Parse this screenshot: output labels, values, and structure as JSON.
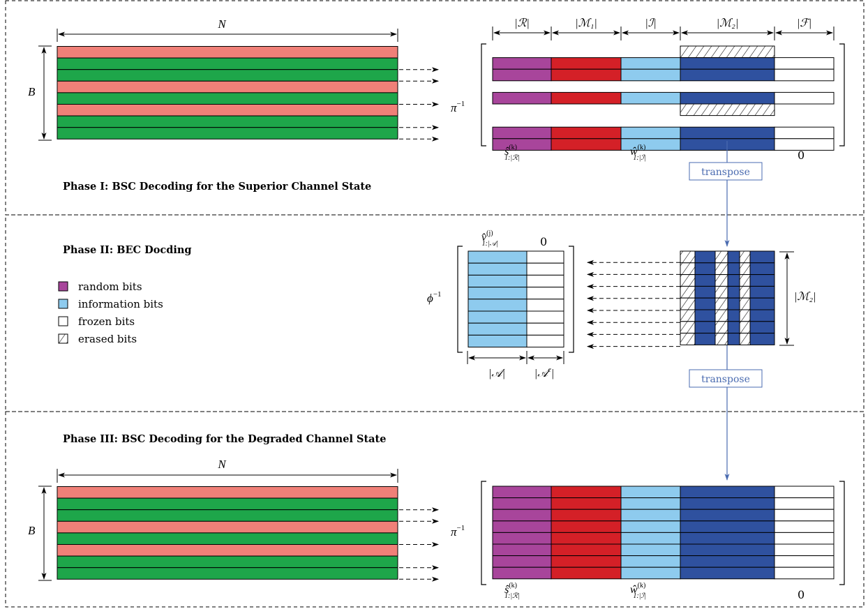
{
  "colors": {
    "random": "#A8459B",
    "m1_red": "#D42027",
    "information": "#8ECBEE",
    "m2_blue": "#2F519F",
    "frozen": "#FFFFFF",
    "row_red": "#F08078",
    "row_green": "#1EA64A",
    "arrow_blue": "#4A6BB0",
    "border": "#000000"
  },
  "phase1": {
    "title": "Phase I: BSC Decoding for the Superior Channel State",
    "n_label": "N",
    "b_label": "B",
    "pi_inv": "π",
    "pi_sup": "−1",
    "seg_labels": [
      "|ℛ|",
      "|ℳ₁|",
      "|ℐ|",
      "|ℳ₂|",
      "|ℱ|"
    ],
    "below_left": {
      "base": "ŝ",
      "sup": "(k)",
      "sub": "1:|ℛ|"
    },
    "below_mid": {
      "base": "ŵ",
      "sup": "(k)",
      "sub": "1:|ℐ|"
    },
    "below_right": "0",
    "row_pattern": [
      "red",
      "green",
      "green",
      "red",
      "green",
      "red",
      "green",
      "green"
    ],
    "matrix_rows": [
      "erased",
      "bits",
      "bits",
      "gap",
      "bits",
      "erased",
      "gap",
      "bits",
      "bits"
    ]
  },
  "transpose_label": "transpose",
  "phase2": {
    "title": "Phase II: BEC Docding",
    "phi_inv": "ϕ",
    "phi_sup": "−1",
    "top_left": {
      "base": "v̂",
      "sup": "(j)",
      "sub": "1:|𝒜|"
    },
    "top_right": "0",
    "a_label": "|𝒜|",
    "ac_label": "|𝒜",
    "ac_sup": "c",
    "m2_label": "|ℳ₂|",
    "rows": 8,
    "col_pattern": [
      "erased",
      "blue",
      "erased",
      "blue",
      "erased",
      "blue"
    ]
  },
  "legend": [
    {
      "label": "random bits",
      "kind": "random"
    },
    {
      "label": "information bits",
      "kind": "information"
    },
    {
      "label": "frozen bits",
      "kind": "frozen"
    },
    {
      "label": "erased bits",
      "kind": "erased"
    }
  ],
  "phase3": {
    "title": "Phase III: BSC Decoding for the Degraded Channel State",
    "n_label": "N",
    "b_label": "B",
    "pi_inv": "π",
    "pi_sup": "−1",
    "below_left": {
      "base": "ŝ",
      "sup": "(k)",
      "sub": "1:|ℛ|"
    },
    "below_mid": {
      "base": "ŵ",
      "sup": "(k)",
      "sub": "1:|ℐ|"
    },
    "below_right": "0",
    "row_pattern": [
      "red",
      "green",
      "green",
      "red",
      "green",
      "red",
      "green",
      "green"
    ],
    "matrix_rows": 8
  }
}
